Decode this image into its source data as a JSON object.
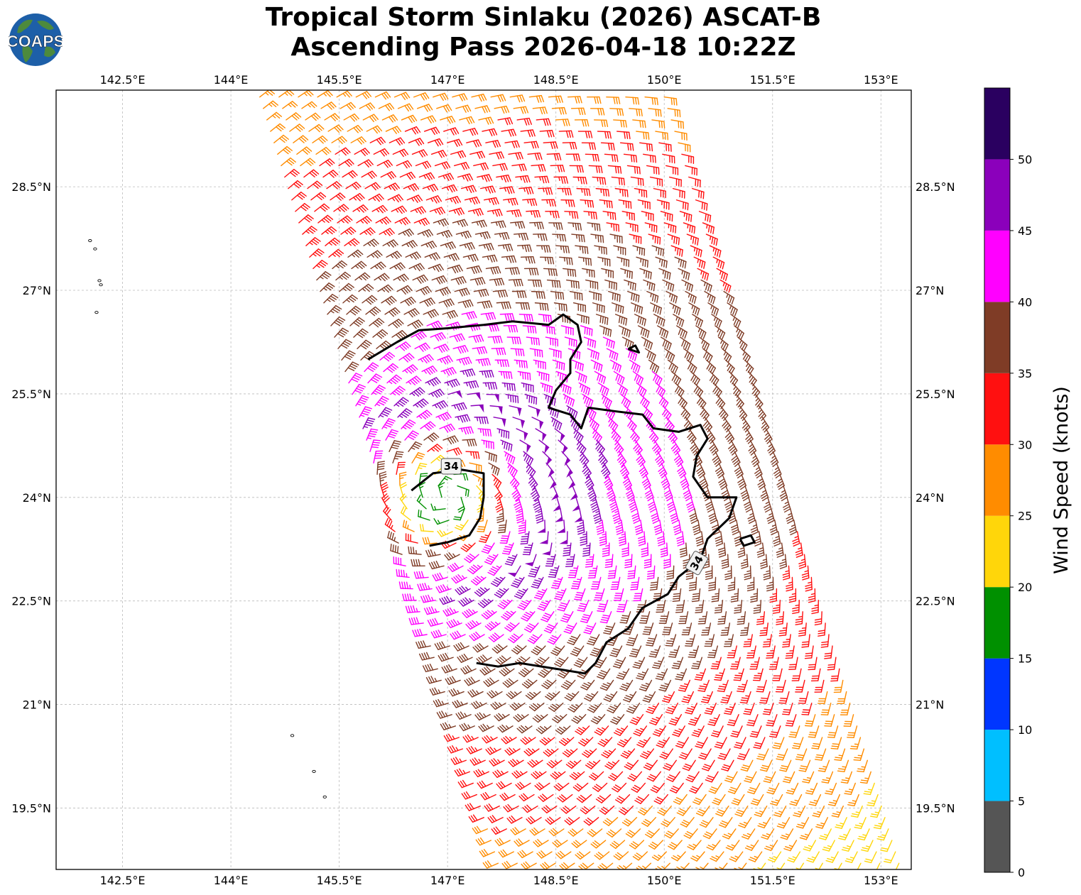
{
  "title": {
    "line1": "Tropical Storm Sinlaku (2026) ASCAT-B",
    "line2": "Ascending Pass 2026-04-18 10:22Z"
  },
  "logo": {
    "text": "COAPS",
    "icon": "globe-icon"
  },
  "chart_data": {
    "type": "wind-barb-map",
    "xlim": [
      141.58,
      153.42
    ],
    "ylim": [
      18.61,
      29.9
    ],
    "x_ticks": [
      142.5,
      144,
      145.5,
      147,
      148.5,
      150,
      151.5,
      153
    ],
    "x_tick_labels": [
      "142.5°E",
      "144°E",
      "145.5°E",
      "147°E",
      "148.5°E",
      "150°E",
      "151.5°E",
      "153°E"
    ],
    "y_ticks": [
      19.5,
      21,
      22.5,
      24,
      25.5,
      27,
      28.5
    ],
    "y_tick_labels": [
      "19.5°N",
      "21°N",
      "22.5°N",
      "24°N",
      "25.5°N",
      "27°N",
      "28.5°N"
    ],
    "gridlines": true,
    "storm_center": {
      "lon": 147.0,
      "lat": 24.0
    },
    "swath": {
      "corners": [
        [
          144.4,
          29.8
        ],
        [
          150.0,
          29.8
        ],
        [
          153.25,
          18.7
        ],
        [
          147.7,
          18.7
        ]
      ]
    },
    "contour": {
      "level": 34,
      "labels": [
        {
          "text": "34",
          "lon": 147.05,
          "lat": 24.45,
          "angle": 0
        },
        {
          "text": "34",
          "lon": 150.45,
          "lat": 23.05,
          "angle": -60
        }
      ],
      "paths": [
        [
          [
            145.9,
            26.0
          ],
          [
            146.3,
            26.25
          ],
          [
            146.6,
            26.42
          ],
          [
            147.0,
            26.45
          ],
          [
            147.5,
            26.5
          ],
          [
            147.9,
            26.55
          ],
          [
            148.4,
            26.5
          ],
          [
            148.6,
            26.65
          ],
          [
            148.8,
            26.5
          ],
          [
            148.85,
            26.25
          ],
          [
            148.7,
            26.0
          ],
          [
            148.7,
            25.8
          ],
          [
            148.5,
            25.55
          ],
          [
            148.4,
            25.3
          ],
          [
            148.7,
            25.2
          ],
          [
            148.85,
            25.0
          ],
          [
            148.95,
            25.3
          ],
          [
            149.3,
            25.25
          ],
          [
            149.7,
            25.2
          ],
          [
            149.85,
            25.0
          ],
          [
            150.2,
            24.95
          ],
          [
            150.5,
            25.05
          ],
          [
            150.6,
            24.85
          ],
          [
            150.45,
            24.6
          ],
          [
            150.4,
            24.3
          ],
          [
            150.6,
            24.0
          ],
          [
            151.0,
            24.0
          ],
          [
            150.9,
            23.7
          ],
          [
            150.6,
            23.4
          ],
          [
            150.5,
            23.1
          ],
          [
            150.2,
            22.85
          ],
          [
            150.05,
            22.6
          ],
          [
            149.7,
            22.4
          ],
          [
            149.5,
            22.1
          ],
          [
            149.2,
            21.9
          ],
          [
            149.05,
            21.6
          ],
          [
            148.9,
            21.45
          ],
          [
            148.6,
            21.5
          ],
          [
            148.3,
            21.55
          ],
          [
            148.0,
            21.6
          ],
          [
            147.7,
            21.55
          ],
          [
            147.4,
            21.6
          ]
        ],
        [
          [
            146.5,
            24.1
          ],
          [
            146.8,
            24.35
          ],
          [
            147.2,
            24.4
          ],
          [
            147.5,
            24.35
          ],
          [
            147.5,
            24.0
          ],
          [
            147.45,
            23.7
          ],
          [
            147.3,
            23.45
          ],
          [
            147.0,
            23.35
          ],
          [
            146.75,
            23.3
          ]
        ],
        [
          [
            149.5,
            26.15
          ],
          [
            149.6,
            26.2
          ],
          [
            149.65,
            26.1
          ],
          [
            149.5,
            26.15
          ]
        ],
        [
          [
            151.05,
            23.4
          ],
          [
            151.2,
            23.45
          ],
          [
            151.25,
            23.35
          ],
          [
            151.1,
            23.3
          ],
          [
            151.05,
            23.4
          ]
        ]
      ]
    },
    "islands": [
      {
        "lon": 142.05,
        "lat": 27.72
      },
      {
        "lon": 142.12,
        "lat": 27.6
      },
      {
        "lon": 142.18,
        "lat": 27.14
      },
      {
        "lon": 142.2,
        "lat": 27.08
      },
      {
        "lon": 142.14,
        "lat": 26.68
      },
      {
        "lon": 144.85,
        "lat": 20.55
      },
      {
        "lon": 145.15,
        "lat": 20.03
      },
      {
        "lon": 145.3,
        "lat": 19.66
      }
    ],
    "colorbar": {
      "label": "Wind Speed (knots)",
      "bounds": [
        0,
        5,
        10,
        15,
        20,
        25,
        30,
        35,
        40,
        45,
        50,
        55
      ],
      "tick_values": [
        0,
        5,
        10,
        15,
        20,
        25,
        30,
        35,
        40,
        45,
        50
      ],
      "colors": [
        "#555555",
        "#00bfff",
        "#0036ff",
        "#009000",
        "#ffd60a",
        "#ff8c00",
        "#ff1010",
        "#7f3c26",
        "#ff00ff",
        "#8b00bb",
        "#2a0060"
      ]
    },
    "units": "knots"
  }
}
